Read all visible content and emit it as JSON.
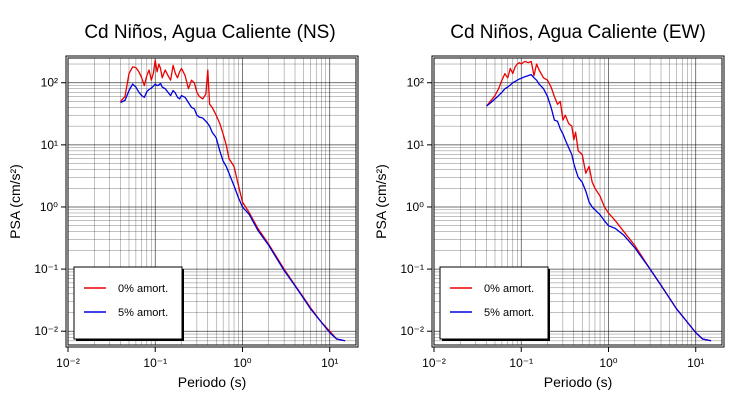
{
  "colors": {
    "series_0": "#ee0000",
    "series_5": "#0000dd",
    "grid": "#000000"
  },
  "chart_data": [
    {
      "type": "line",
      "title": "Cd Niños, Agua Caliente (NS)",
      "xlabel": "Periodo (s)",
      "ylabel": "PSA (cm/s²)",
      "xscale": "log",
      "yscale": "log",
      "xlim": [
        0.01,
        20
      ],
      "ylim": [
        0.006,
        250
      ],
      "xticks": [
        "10⁻²",
        "10⁻¹",
        "10⁰",
        "10¹"
      ],
      "yticks": [
        "10⁻²",
        "10⁻¹",
        "10⁰",
        "10¹",
        "10²"
      ],
      "grid": true,
      "legend_position": "bottom-left",
      "series": [
        {
          "name": "0% amort.",
          "color": "#ee0000",
          "x": [
            0.04,
            0.045,
            0.05,
            0.055,
            0.06,
            0.065,
            0.07,
            0.075,
            0.08,
            0.085,
            0.09,
            0.095,
            0.1,
            0.105,
            0.11,
            0.115,
            0.12,
            0.13,
            0.14,
            0.15,
            0.16,
            0.17,
            0.18,
            0.19,
            0.2,
            0.22,
            0.24,
            0.26,
            0.28,
            0.3,
            0.32,
            0.35,
            0.38,
            0.4,
            0.42,
            0.45,
            0.5,
            0.55,
            0.6,
            0.65,
            0.7,
            0.8,
            0.9,
            1.0,
            1.2,
            1.5,
            2,
            3,
            4,
            5,
            6,
            8,
            10,
            12,
            15
          ],
          "y": [
            50,
            60,
            140,
            180,
            175,
            150,
            120,
            90,
            130,
            160,
            110,
            140,
            230,
            150,
            200,
            170,
            120,
            160,
            130,
            110,
            190,
            140,
            120,
            150,
            170,
            130,
            80,
            110,
            100,
            70,
            60,
            55,
            65,
            160,
            45,
            40,
            30,
            22,
            15,
            10,
            6,
            4.5,
            2.2,
            1.2,
            0.8,
            0.45,
            0.25,
            0.1,
            0.055,
            0.035,
            0.024,
            0.014,
            0.01,
            0.0075,
            0.007
          ]
        },
        {
          "name": "5% amort.",
          "color": "#0000dd",
          "x": [
            0.04,
            0.045,
            0.05,
            0.055,
            0.06,
            0.065,
            0.07,
            0.075,
            0.08,
            0.085,
            0.09,
            0.095,
            0.1,
            0.105,
            0.11,
            0.115,
            0.12,
            0.13,
            0.14,
            0.15,
            0.16,
            0.17,
            0.18,
            0.19,
            0.2,
            0.22,
            0.24,
            0.26,
            0.28,
            0.3,
            0.32,
            0.35,
            0.38,
            0.4,
            0.42,
            0.45,
            0.5,
            0.55,
            0.6,
            0.65,
            0.7,
            0.8,
            0.9,
            1.0,
            1.2,
            1.5,
            2,
            3,
            4,
            5,
            6,
            8,
            10,
            12,
            15
          ],
          "y": [
            48,
            52,
            75,
            95,
            85,
            70,
            62,
            58,
            72,
            78,
            82,
            88,
            95,
            90,
            92,
            98,
            85,
            80,
            70,
            62,
            75,
            68,
            58,
            55,
            62,
            58,
            48,
            40,
            38,
            30,
            28,
            27,
            24,
            22,
            20,
            16,
            13,
            8,
            5.5,
            4.5,
            3.5,
            2.2,
            1.4,
            1.0,
            0.75,
            0.42,
            0.24,
            0.095,
            0.054,
            0.034,
            0.023,
            0.014,
            0.0095,
            0.0075,
            0.007
          ]
        }
      ]
    },
    {
      "type": "line",
      "title": "Cd Niños, Agua Caliente (EW)",
      "xlabel": "Periodo (s)",
      "ylabel": "PSA (cm/s²)",
      "xscale": "log",
      "yscale": "log",
      "xlim": [
        0.01,
        20
      ],
      "ylim": [
        0.006,
        250
      ],
      "xticks": [
        "10⁻²",
        "10⁻¹",
        "10⁰",
        "10¹"
      ],
      "yticks": [
        "10⁻²",
        "10⁻¹",
        "10⁰",
        "10¹",
        "10²"
      ],
      "grid": true,
      "legend_position": "bottom-left",
      "series": [
        {
          "name": "0% amort.",
          "color": "#ee0000",
          "x": [
            0.04,
            0.045,
            0.05,
            0.055,
            0.06,
            0.065,
            0.07,
            0.075,
            0.08,
            0.085,
            0.09,
            0.095,
            0.1,
            0.11,
            0.12,
            0.13,
            0.14,
            0.15,
            0.16,
            0.18,
            0.2,
            0.22,
            0.24,
            0.26,
            0.28,
            0.3,
            0.32,
            0.35,
            0.38,
            0.4,
            0.42,
            0.45,
            0.5,
            0.55,
            0.6,
            0.65,
            0.7,
            0.8,
            0.9,
            1.0,
            1.2,
            1.5,
            2,
            3,
            4,
            5,
            6,
            8,
            10,
            12,
            15
          ],
          "y": [
            42,
            52,
            62,
            80,
            110,
            140,
            120,
            170,
            140,
            180,
            200,
            210,
            200,
            220,
            210,
            220,
            130,
            200,
            160,
            120,
            110,
            85,
            60,
            45,
            50,
            25,
            30,
            22,
            20,
            12,
            16,
            8,
            7,
            3.5,
            4.5,
            2.5,
            2,
            1.5,
            1,
            0.8,
            0.6,
            0.4,
            0.24,
            0.1,
            0.055,
            0.034,
            0.023,
            0.014,
            0.0095,
            0.0075,
            0.007
          ]
        },
        {
          "name": "5% amort.",
          "color": "#0000dd",
          "x": [
            0.04,
            0.045,
            0.05,
            0.055,
            0.06,
            0.065,
            0.07,
            0.075,
            0.08,
            0.085,
            0.09,
            0.095,
            0.1,
            0.11,
            0.12,
            0.13,
            0.14,
            0.15,
            0.16,
            0.18,
            0.2,
            0.22,
            0.24,
            0.26,
            0.28,
            0.3,
            0.32,
            0.35,
            0.38,
            0.4,
            0.42,
            0.45,
            0.5,
            0.55,
            0.6,
            0.65,
            0.7,
            0.8,
            0.9,
            1.0,
            1.2,
            1.5,
            2,
            3,
            4,
            5,
            6,
            8,
            10,
            12,
            15
          ],
          "y": [
            42,
            48,
            55,
            62,
            70,
            80,
            85,
            92,
            100,
            105,
            110,
            115,
            118,
            125,
            130,
            135,
            120,
            110,
            95,
            80,
            60,
            40,
            25,
            24,
            18,
            15,
            12,
            9,
            7,
            5,
            4,
            3,
            2.5,
            1.8,
            1.2,
            1,
            0.9,
            0.75,
            0.6,
            0.5,
            0.45,
            0.35,
            0.22,
            0.1,
            0.055,
            0.034,
            0.023,
            0.014,
            0.0095,
            0.0075,
            0.007
          ]
        }
      ]
    }
  ]
}
